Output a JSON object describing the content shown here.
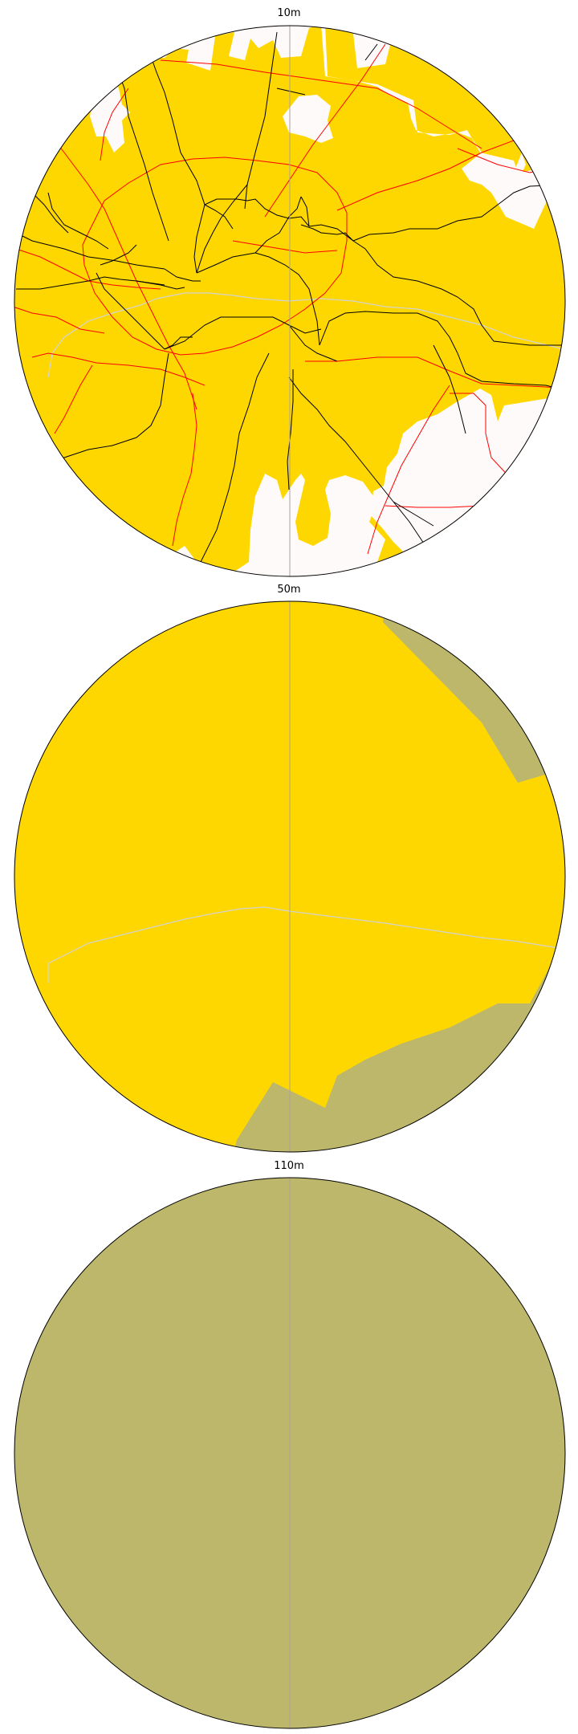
{
  "colors": {
    "urban_fill": "#ffd700",
    "land_fill": "#bdb76b",
    "background_fill": "#fffafa",
    "major_roads": "#000000",
    "railways": "#ff0000",
    "rivers": "#d3d3d3",
    "meridian": "#a9a29d",
    "outline": "#000000"
  },
  "panels": [
    {
      "title": "10m",
      "layers": [
        "urban_areas",
        "roads",
        "railways",
        "rivers"
      ]
    },
    {
      "title": "50m",
      "layers": [
        "urban_areas",
        "land",
        "rivers"
      ]
    },
    {
      "title": "110m",
      "layers": [
        "land"
      ]
    }
  ]
}
